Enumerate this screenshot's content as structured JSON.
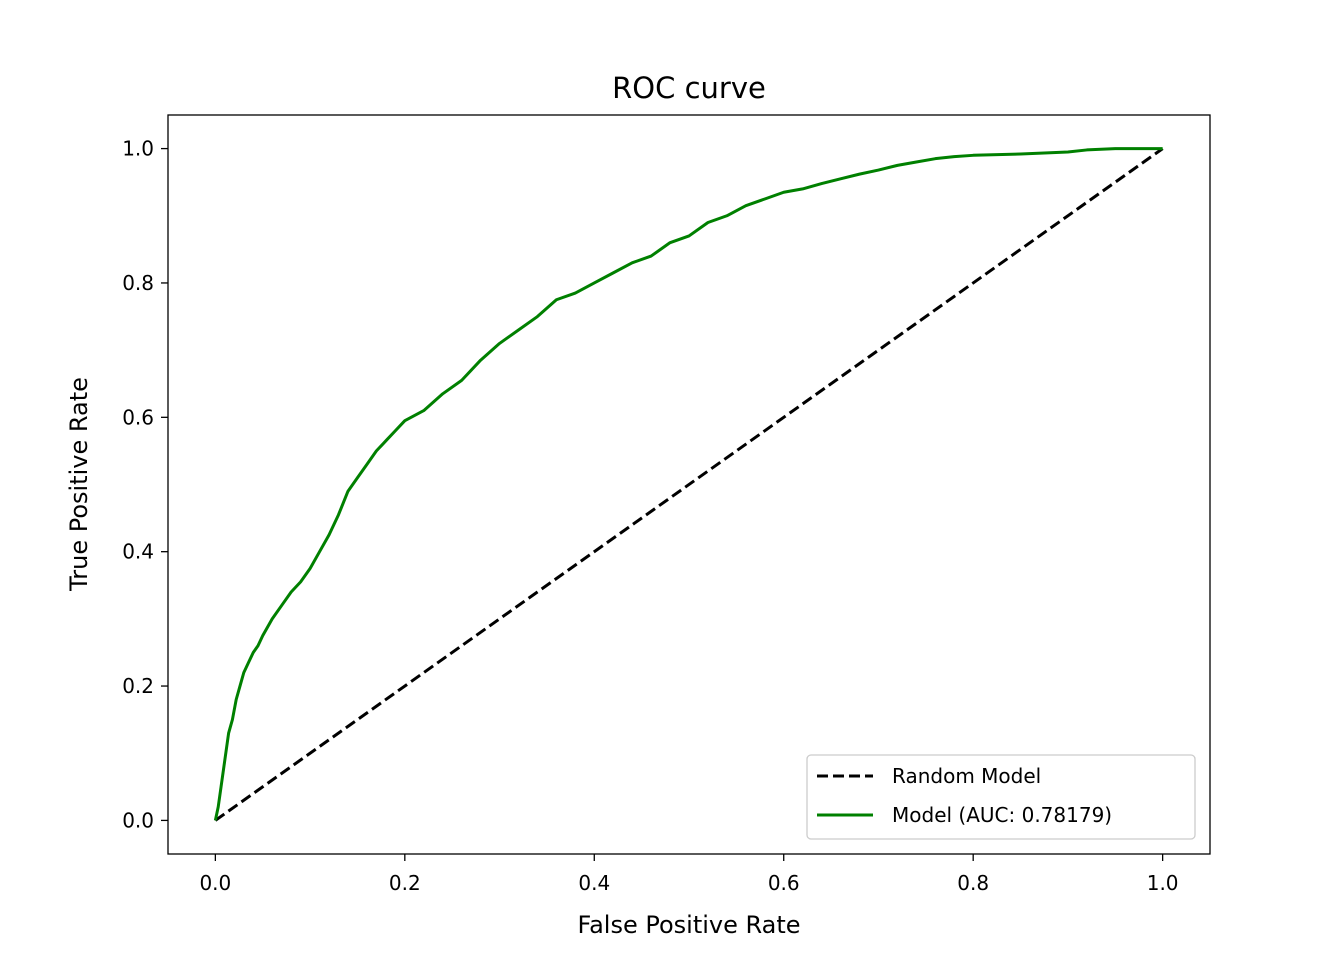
{
  "chart_data": {
    "type": "line",
    "title": "ROC curve",
    "xlabel": "False Positive Rate",
    "ylabel": "True Positive Rate",
    "xlim": [
      -0.05,
      1.05
    ],
    "ylim": [
      -0.05,
      1.05
    ],
    "xticks": [
      0.0,
      0.2,
      0.4,
      0.6,
      0.8,
      1.0
    ],
    "xtick_labels": [
      "0.0",
      "0.2",
      "0.4",
      "0.6",
      "0.8",
      "1.0"
    ],
    "yticks": [
      0.0,
      0.2,
      0.4,
      0.6,
      0.8,
      1.0
    ],
    "ytick_labels": [
      "0.0",
      "0.2",
      "0.4",
      "0.6",
      "0.8",
      "1.0"
    ],
    "grid": false,
    "legend_position": "lower-right",
    "series": [
      {
        "name": "Random Model",
        "color": "#000000",
        "style": "dashed",
        "x": [
          0.0,
          1.0
        ],
        "y": [
          0.0,
          1.0
        ]
      },
      {
        "name": "Model (AUC: 0.78179)",
        "color": "#008000",
        "style": "solid",
        "x": [
          0.0,
          0.003,
          0.006,
          0.01,
          0.014,
          0.018,
          0.022,
          0.026,
          0.03,
          0.035,
          0.04,
          0.045,
          0.05,
          0.06,
          0.07,
          0.08,
          0.09,
          0.1,
          0.11,
          0.12,
          0.13,
          0.14,
          0.15,
          0.16,
          0.17,
          0.18,
          0.19,
          0.2,
          0.22,
          0.24,
          0.26,
          0.28,
          0.3,
          0.32,
          0.34,
          0.36,
          0.38,
          0.4,
          0.42,
          0.44,
          0.46,
          0.48,
          0.5,
          0.52,
          0.54,
          0.56,
          0.58,
          0.6,
          0.62,
          0.64,
          0.66,
          0.68,
          0.7,
          0.72,
          0.74,
          0.76,
          0.78,
          0.8,
          0.85,
          0.9,
          0.92,
          0.95,
          1.0
        ],
        "y": [
          0.0,
          0.02,
          0.05,
          0.09,
          0.13,
          0.15,
          0.18,
          0.2,
          0.22,
          0.235,
          0.25,
          0.26,
          0.275,
          0.3,
          0.32,
          0.34,
          0.355,
          0.375,
          0.4,
          0.425,
          0.455,
          0.49,
          0.51,
          0.53,
          0.55,
          0.565,
          0.58,
          0.595,
          0.61,
          0.635,
          0.655,
          0.685,
          0.71,
          0.73,
          0.75,
          0.775,
          0.785,
          0.8,
          0.815,
          0.83,
          0.84,
          0.86,
          0.87,
          0.89,
          0.9,
          0.915,
          0.925,
          0.935,
          0.94,
          0.948,
          0.955,
          0.962,
          0.968,
          0.975,
          0.98,
          0.985,
          0.988,
          0.99,
          0.992,
          0.995,
          0.998,
          1.0,
          1.0
        ]
      }
    ]
  }
}
